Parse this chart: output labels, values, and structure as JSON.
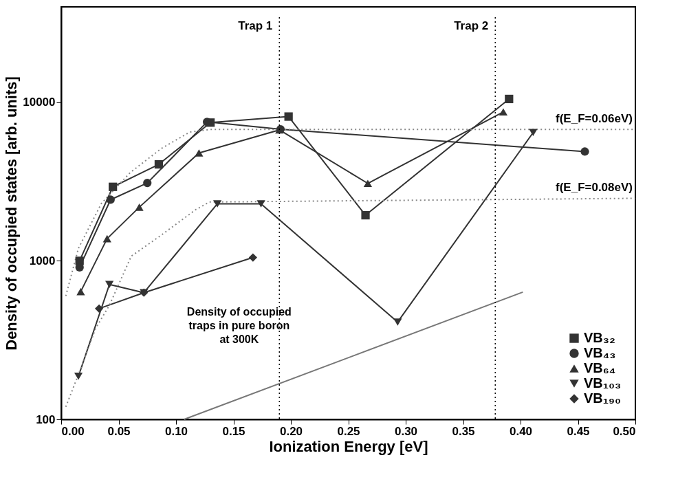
{
  "chart_data": {
    "type": "line",
    "xlabel": "Ionization Energy [eV]",
    "ylabel": "Density of occupied states [arb. units]",
    "xlim": [
      0,
      0.5
    ],
    "ylim": [
      100,
      40000
    ],
    "log": true,
    "grid": false,
    "legend": "bottom right",
    "line_style": "solid",
    "xticks": [
      {
        "value": 0,
        "label": "0.00"
      },
      {
        "value": 0.05,
        "label": "0.05"
      },
      {
        "value": 0.1,
        "label": "0.10"
      },
      {
        "value": 0.15,
        "label": "0.15"
      },
      {
        "value": 0.2,
        "label": "0.20"
      },
      {
        "value": 0.25,
        "label": "0.25"
      },
      {
        "value": 0.3,
        "label": "0.30"
      },
      {
        "value": 0.35,
        "label": "0.35"
      },
      {
        "value": 0.4,
        "label": "0.40"
      },
      {
        "value": 0.45,
        "label": "0.45"
      },
      {
        "value": 0.5,
        "label": "0.50"
      }
    ],
    "yticks": [
      100,
      1000,
      10000
    ],
    "series": [
      {
        "name": "VB₃₂",
        "color": "#333333",
        "marker": "square",
        "x": [
          0.016,
          0.045,
          0.085,
          0.13,
          0.198,
          0.265,
          0.39
        ],
        "values": [
          1000,
          2930,
          4060,
          7450,
          8130,
          1940,
          10500
        ]
      },
      {
        "name": "VB₄₃",
        "color": "#333333",
        "marker": "circle",
        "x": [
          0.016,
          0.043,
          0.075,
          0.127,
          0.191,
          0.456
        ],
        "values": [
          910,
          2430,
          3100,
          7520,
          6760,
          4890
        ]
      },
      {
        "name": "VB₆₄",
        "color": "#333333",
        "marker": "triangle",
        "x": [
          0.017,
          0.04,
          0.068,
          0.12,
          0.19,
          0.267,
          0.385
        ],
        "values": [
          640,
          1380,
          2180,
          4790,
          6700,
          3080,
          8700
        ]
      },
      {
        "name": "VB₁₀₃",
        "color": "#333333",
        "marker": "triangle_down",
        "x": [
          0.015,
          0.042,
          0.072,
          0.136,
          0.174,
          0.293,
          0.411
        ],
        "values": [
          187,
          710,
          630,
          2290,
          2290,
          411,
          6450
        ]
      },
      {
        "name": "VB₁₉₀",
        "color": "#333333",
        "marker": "diamond",
        "x": [
          0.033,
          0.072,
          0.167
        ],
        "values": [
          500,
          630,
          1050
        ]
      },
      {
        "name": "f(E_F=0.06eV)",
        "color": "#888888",
        "marker": "none",
        "line_style": "dotted",
        "x": [
          0.004,
          0.015,
          0.035,
          0.06,
          0.087,
          0.112,
          0.13,
          0.5
        ],
        "values": [
          600,
          1200,
          2300,
          3600,
          5100,
          6500,
          6750,
          6750
        ]
      },
      {
        "name": "f(E_F=0.08eV)",
        "color": "#888888",
        "marker": "none",
        "line_style": "dotted",
        "x": [
          0.004,
          0.018,
          0.03,
          0.042,
          0.061,
          0.087,
          0.117,
          0.129,
          0.5
        ],
        "values": [
          120,
          218,
          375,
          525,
          1070,
          1450,
          2100,
          2350,
          2480
        ]
      },
      {
        "color": "#777777",
        "marker": "none",
        "line_style": "solid",
        "x": [
          0.107,
          0.402
        ],
        "values": [
          100,
          635
        ]
      }
    ],
    "ref_lines": [
      {
        "axis": "x",
        "value": 0.19,
        "label": "Trap 1",
        "line_style": "dotted",
        "color": "#000000"
      },
      {
        "axis": "x",
        "value": 0.378,
        "label": "Trap 2",
        "line_style": "dotted",
        "color": "#000000"
      }
    ],
    "annotations": [
      "Density of occupied\ntraps in pure boron\nat 300K"
    ]
  }
}
